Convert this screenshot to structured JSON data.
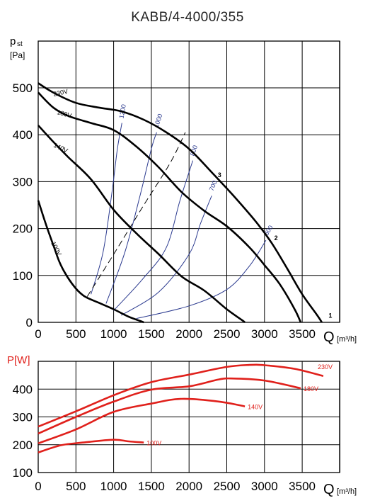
{
  "title": "KABB/4-4000/355",
  "chart_data": [
    {
      "type": "line",
      "name": "pressure-chart",
      "title": "KABB/4-4000/355",
      "ylabel_main": "p",
      "ylabel_sub": "st",
      "ylabel_unit": "[Pa]",
      "xlabel": "Q",
      "xlabel_unit": "[m³/h]",
      "x_ticks": [
        0,
        500,
        1000,
        1500,
        2000,
        2500,
        3000,
        3500
      ],
      "x_tick_labels": [
        "0",
        "500",
        "1000",
        "1500",
        "2000",
        "2500",
        "3000",
        "3500"
      ],
      "y_ticks": [
        0,
        100,
        200,
        300,
        400,
        500
      ],
      "y_tick_labels": [
        "0",
        "100",
        "200",
        "300",
        "400",
        "500"
      ],
      "xlim": [
        0,
        4000
      ],
      "ylim": [
        0,
        500
      ],
      "grid": true,
      "series": [
        {
          "name": "230V",
          "color": "#000000",
          "points": [
            [
              0,
              510
            ],
            [
              200,
              490
            ],
            [
              500,
              468
            ],
            [
              800,
              458
            ],
            [
              1100,
              450
            ],
            [
              1400,
              432
            ],
            [
              1700,
              405
            ],
            [
              2000,
              370
            ],
            [
              2300,
              320
            ],
            [
              2600,
              268
            ],
            [
              2900,
              212
            ],
            [
              3100,
              168
            ],
            [
              3300,
              115
            ],
            [
              3500,
              60
            ],
            [
              3700,
              15
            ],
            [
              3760,
              0
            ]
          ]
        },
        {
          "name": "180V",
          "color": "#000000",
          "points": [
            [
              0,
              490
            ],
            [
              200,
              458
            ],
            [
              400,
              440
            ],
            [
              700,
              425
            ],
            [
              1000,
              410
            ],
            [
              1300,
              375
            ],
            [
              1600,
              330
            ],
            [
              1900,
              278
            ],
            [
              2200,
              238
            ],
            [
              2500,
              205
            ],
            [
              2800,
              160
            ],
            [
              3000,
              122
            ],
            [
              3200,
              82
            ],
            [
              3400,
              28
            ],
            [
              3480,
              0
            ]
          ]
        },
        {
          "name": "140V",
          "color": "#000000",
          "points": [
            [
              0,
              420
            ],
            [
              200,
              385
            ],
            [
              400,
              352
            ],
            [
              700,
              305
            ],
            [
              1000,
              240
            ],
            [
              1300,
              190
            ],
            [
              1600,
              145
            ],
            [
              1900,
              98
            ],
            [
              2200,
              68
            ],
            [
              2500,
              28
            ],
            [
              2700,
              5
            ],
            [
              2740,
              0
            ]
          ]
        },
        {
          "name": "100V",
          "color": "#000000",
          "points": [
            [
              0,
              260
            ],
            [
              100,
              210
            ],
            [
              200,
              165
            ],
            [
              300,
              122
            ],
            [
              450,
              82
            ],
            [
              600,
              57
            ],
            [
              800,
              42
            ],
            [
              1000,
              28
            ],
            [
              1200,
              12
            ],
            [
              1350,
              3
            ],
            [
              1400,
              0
            ]
          ]
        }
      ],
      "speed_lines": [
        {
          "label": "1200",
          "color": "#2b3a8f",
          "points": [
            [
              700,
              60
            ],
            [
              860,
              150
            ],
            [
              980,
              280
            ],
            [
              1050,
              370
            ],
            [
              1110,
              425
            ]
          ]
        },
        {
          "label": "1000",
          "color": "#2b3a8f",
          "points": [
            [
              900,
              40
            ],
            [
              1150,
              150
            ],
            [
              1350,
              270
            ],
            [
              1500,
              370
            ],
            [
              1570,
              405
            ]
          ]
        },
        {
          "label": "800",
          "color": "#2b3a8f",
          "points": [
            [
              1000,
              25
            ],
            [
              1400,
              95
            ],
            [
              1700,
              160
            ],
            [
              1880,
              260
            ],
            [
              2050,
              345
            ]
          ]
        },
        {
          "label": "700",
          "color": "#2b3a8f",
          "points": [
            [
              1100,
              15
            ],
            [
              1600,
              65
            ],
            [
              2000,
              145
            ],
            [
              2150,
              210
            ],
            [
              2300,
              270
            ]
          ]
        },
        {
          "label": "600",
          "color": "#2b3a8f",
          "points": [
            [
              1300,
              8
            ],
            [
              2000,
              35
            ],
            [
              2500,
              70
            ],
            [
              2800,
              120
            ],
            [
              3020,
              175
            ]
          ]
        }
      ],
      "dashed_line": {
        "color": "#000000",
        "points": [
          [
            650,
            55
          ],
          [
            1000,
            145
          ],
          [
            1400,
            250
          ],
          [
            1750,
            340
          ],
          [
            1950,
            405
          ]
        ]
      },
      "operating_points": [
        {
          "label": "1",
          "x": 3850,
          "y": 10
        },
        {
          "label": "2",
          "x": 3130,
          "y": 175
        },
        {
          "label": "3",
          "x": 2380,
          "y": 310
        }
      ]
    },
    {
      "type": "line",
      "name": "power-chart",
      "ylabel": "P[W]",
      "xlabel": "Q",
      "xlabel_unit": "[m³/h]",
      "x_ticks": [
        0,
        500,
        1000,
        1500,
        2000,
        2500,
        3000,
        3500
      ],
      "x_tick_labels": [
        "0",
        "500",
        "1000",
        "1500",
        "2000",
        "2500",
        "3000",
        "3500"
      ],
      "y_ticks": [
        100,
        200,
        300,
        400
      ],
      "y_tick_labels": [
        "100",
        "200",
        "300",
        "400"
      ],
      "xlim": [
        0,
        4000
      ],
      "ylim": [
        100,
        500
      ],
      "grid": true,
      "series": [
        {
          "name": "230V",
          "color": "#e0201b",
          "points": [
            [
              0,
              265
            ],
            [
              500,
              320
            ],
            [
              1000,
              378
            ],
            [
              1500,
              425
            ],
            [
              2000,
              452
            ],
            [
              2500,
              480
            ],
            [
              2800,
              487
            ],
            [
              3000,
              486
            ],
            [
              3400,
              473
            ],
            [
              3780,
              447
            ]
          ]
        },
        {
          "name": "180V",
          "color": "#e0201b",
          "points": [
            [
              0,
              240
            ],
            [
              500,
              300
            ],
            [
              1000,
              355
            ],
            [
              1500,
              398
            ],
            [
              2000,
              410
            ],
            [
              2400,
              435
            ],
            [
              2600,
              438
            ],
            [
              3000,
              431
            ],
            [
              3480,
              403
            ]
          ]
        },
        {
          "name": "140V",
          "color": "#e0201b",
          "points": [
            [
              0,
              205
            ],
            [
              500,
              255
            ],
            [
              1000,
              318
            ],
            [
              1500,
              348
            ],
            [
              1900,
              365
            ],
            [
              2400,
              355
            ],
            [
              2740,
              338
            ]
          ]
        },
        {
          "name": "100V",
          "color": "#e0201b",
          "points": [
            [
              0,
              172
            ],
            [
              300,
              198
            ],
            [
              600,
              208
            ],
            [
              1000,
              218
            ],
            [
              1200,
              212
            ],
            [
              1400,
              208
            ]
          ]
        }
      ]
    }
  ]
}
